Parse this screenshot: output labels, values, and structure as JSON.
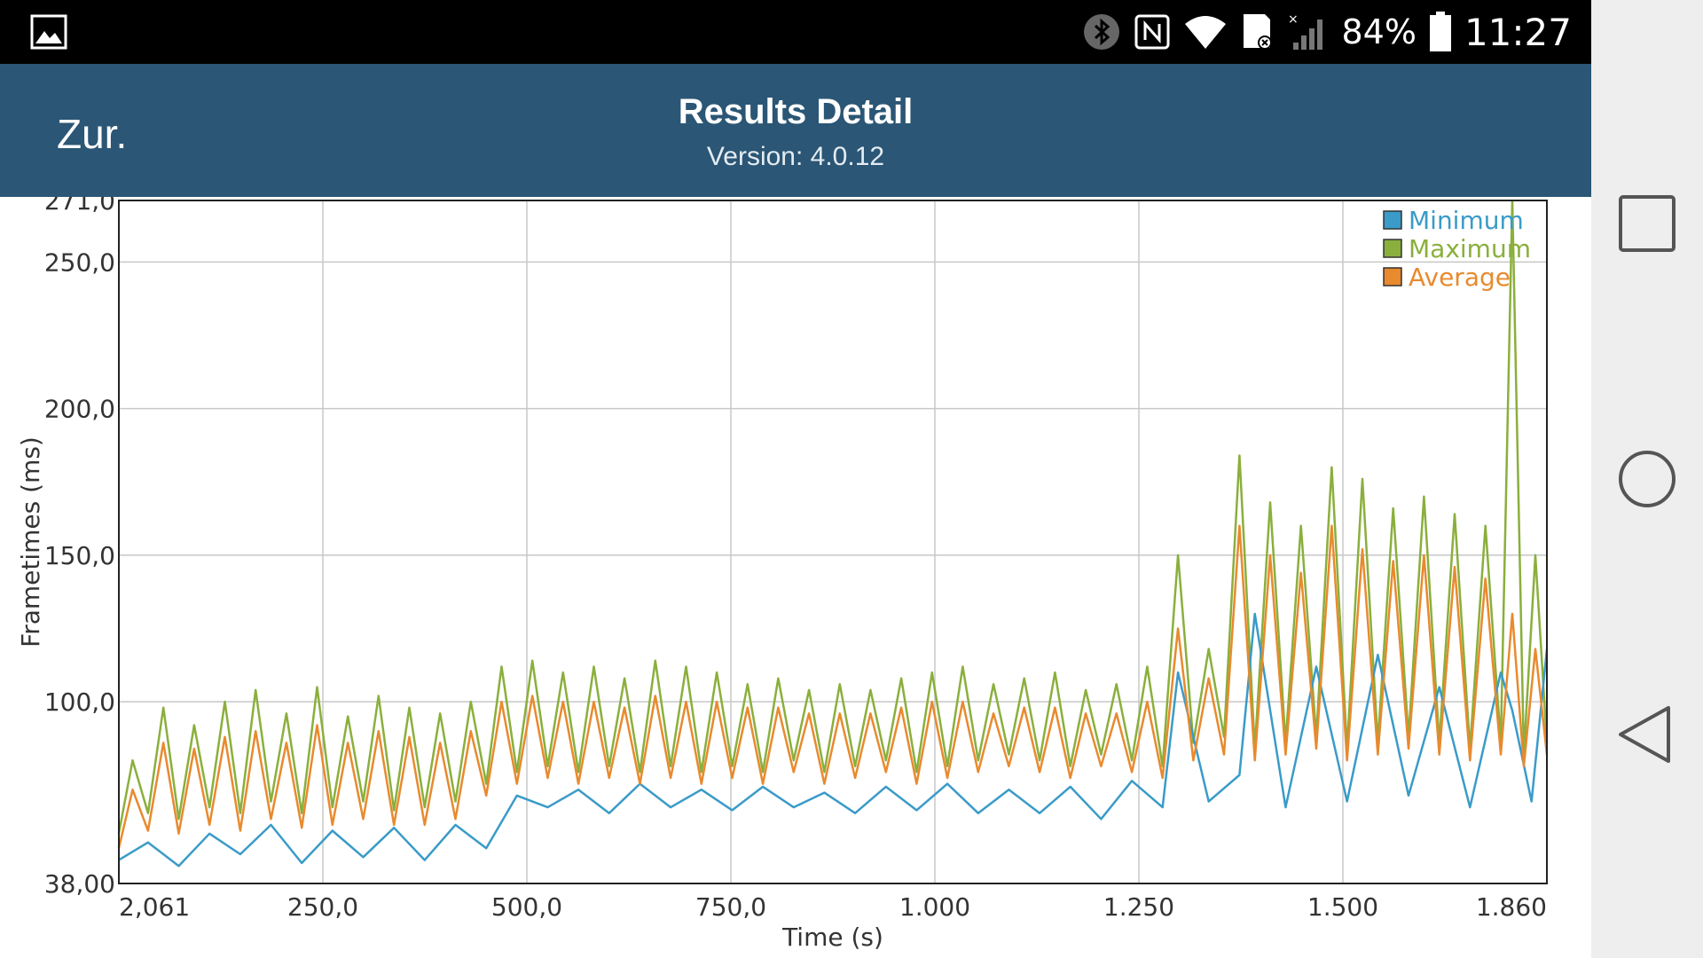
{
  "status_bar": {
    "battery": "84%",
    "time": "11:27",
    "icons": [
      "gallery-icon",
      "bluetooth-icon",
      "nfc-icon",
      "wifi-icon",
      "sd-card-icon",
      "signal-icon",
      "battery-icon"
    ]
  },
  "app_bar": {
    "back_label": "Zur.",
    "title": "Results Detail",
    "subtitle": "Version: 4.0.12",
    "background": "#2b5675"
  },
  "nav_bar": {
    "buttons": [
      "recent-apps-icon",
      "home-icon",
      "back-icon"
    ]
  },
  "chart_data": {
    "type": "line",
    "xlabel": "Time (s)",
    "ylabel": "Frametimes (ms)",
    "xlim": [
      2.061,
      1860
    ],
    "ylim": [
      38,
      271
    ],
    "x_ticks": [
      "2,061",
      "250,0",
      "500,0",
      "750,0",
      "1.000",
      "1.250",
      "1.500",
      "1.860"
    ],
    "y_ticks": [
      "38,00",
      "100,0",
      "150,0",
      "200,0",
      "250,0",
      "271,0"
    ],
    "y_tick_values": [
      38,
      100,
      150,
      200,
      250,
      271
    ],
    "grid": true,
    "legend_position": "top-right",
    "series": [
      {
        "name": "Minimum",
        "color": "#3a9bc8",
        "x": [
          2,
          40,
          80,
          120,
          160,
          200,
          240,
          280,
          320,
          360,
          400,
          440,
          480,
          520,
          560,
          600,
          640,
          680,
          720,
          760,
          800,
          840,
          880,
          920,
          960,
          1000,
          1040,
          1080,
          1120,
          1160,
          1200,
          1240,
          1280,
          1320,
          1360,
          1380,
          1420,
          1460,
          1480,
          1520,
          1560,
          1600,
          1640,
          1680,
          1720,
          1760,
          1800,
          1815,
          1840,
          1860
        ],
        "y": [
          46,
          52,
          44,
          55,
          48,
          58,
          45,
          56,
          47,
          57,
          46,
          58,
          50,
          68,
          64,
          70,
          62,
          72,
          64,
          70,
          63,
          71,
          64,
          69,
          62,
          71,
          63,
          72,
          62,
          70,
          62,
          71,
          60,
          73,
          64,
          110,
          66,
          75,
          130,
          64,
          112,
          66,
          116,
          68,
          105,
          64,
          110,
          97,
          66,
          118
        ]
      },
      {
        "name": "Maximum",
        "color": "#8aaf3c",
        "x": [
          2,
          20,
          40,
          60,
          80,
          100,
          120,
          140,
          160,
          180,
          200,
          220,
          240,
          260,
          280,
          300,
          320,
          340,
          360,
          380,
          400,
          420,
          440,
          460,
          480,
          500,
          520,
          540,
          560,
          580,
          600,
          620,
          640,
          660,
          680,
          700,
          720,
          740,
          760,
          780,
          800,
          820,
          840,
          860,
          880,
          900,
          920,
          940,
          960,
          980,
          1000,
          1020,
          1040,
          1060,
          1080,
          1100,
          1120,
          1140,
          1160,
          1180,
          1200,
          1220,
          1240,
          1260,
          1280,
          1300,
          1320,
          1340,
          1360,
          1380,
          1400,
          1420,
          1440,
          1460,
          1480,
          1500,
          1520,
          1540,
          1560,
          1580,
          1600,
          1620,
          1640,
          1660,
          1680,
          1700,
          1720,
          1740,
          1760,
          1780,
          1800,
          1815,
          1830,
          1845,
          1860
        ],
        "y": [
          55,
          80,
          62,
          98,
          60,
          92,
          64,
          100,
          62,
          104,
          66,
          96,
          62,
          105,
          64,
          95,
          66,
          102,
          63,
          98,
          64,
          96,
          66,
          100,
          72,
          112,
          76,
          114,
          78,
          110,
          76,
          112,
          78,
          108,
          76,
          114,
          78,
          112,
          76,
          110,
          78,
          106,
          76,
          108,
          80,
          104,
          76,
          106,
          78,
          104,
          80,
          108,
          76,
          110,
          78,
          112,
          80,
          106,
          82,
          108,
          80,
          110,
          78,
          104,
          82,
          106,
          80,
          112,
          78,
          150,
          86,
          118,
          88,
          184,
          84,
          168,
          86,
          160,
          88,
          180,
          84,
          176,
          86,
          166,
          88,
          170,
          86,
          164,
          84,
          160,
          86,
          271,
          82,
          150,
          86
        ]
      },
      {
        "name": "Average",
        "color": "#e88a2e",
        "x": [
          2,
          20,
          40,
          60,
          80,
          100,
          120,
          140,
          160,
          180,
          200,
          220,
          240,
          260,
          280,
          300,
          320,
          340,
          360,
          380,
          400,
          420,
          440,
          460,
          480,
          500,
          520,
          540,
          560,
          580,
          600,
          620,
          640,
          660,
          680,
          700,
          720,
          740,
          760,
          780,
          800,
          820,
          840,
          860,
          880,
          900,
          920,
          940,
          960,
          980,
          1000,
          1020,
          1040,
          1060,
          1080,
          1100,
          1120,
          1140,
          1160,
          1180,
          1200,
          1220,
          1240,
          1260,
          1280,
          1300,
          1320,
          1340,
          1360,
          1380,
          1400,
          1420,
          1440,
          1460,
          1480,
          1500,
          1520,
          1540,
          1560,
          1580,
          1600,
          1620,
          1640,
          1660,
          1680,
          1700,
          1720,
          1740,
          1760,
          1780,
          1800,
          1815,
          1830,
          1845,
          1860
        ],
        "y": [
          50,
          70,
          56,
          86,
          55,
          84,
          58,
          88,
          56,
          90,
          60,
          86,
          57,
          92,
          58,
          86,
          60,
          90,
          58,
          88,
          58,
          86,
          60,
          90,
          68,
          100,
          72,
          102,
          74,
          100,
          72,
          100,
          74,
          98,
          72,
          102,
          74,
          100,
          72,
          100,
          74,
          98,
          72,
          98,
          76,
          96,
          72,
          96,
          74,
          96,
          76,
          98,
          72,
          100,
          74,
          100,
          76,
          96,
          78,
          98,
          76,
          98,
          74,
          96,
          78,
          96,
          76,
          100,
          74,
          125,
          80,
          108,
          82,
          160,
          80,
          150,
          82,
          144,
          84,
          160,
          80,
          152,
          82,
          148,
          84,
          150,
          82,
          146,
          80,
          142,
          82,
          130,
          78,
          118,
          82
        ]
      }
    ]
  }
}
